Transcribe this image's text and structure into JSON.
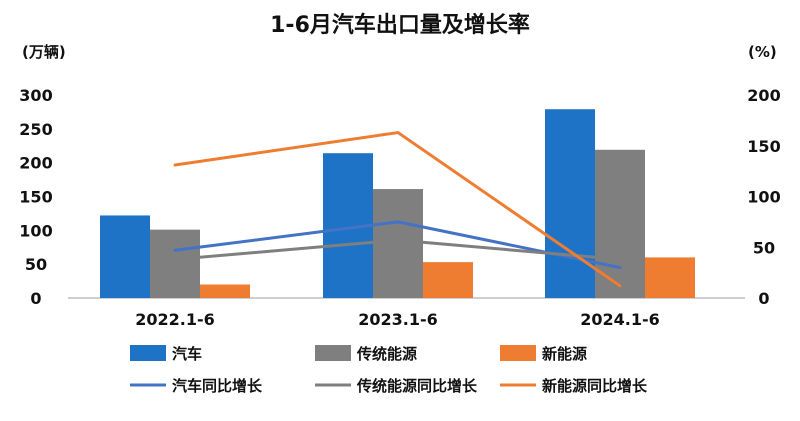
{
  "chart_data": {
    "type": "bar+line",
    "title": "1-6月汽车出口量及增长率",
    "ylabel_left": "(万辆)",
    "ylabel_right": "(%)",
    "categories": [
      "2022.1-6",
      "2023.1-6",
      "2024.1-6"
    ],
    "ylim_left": [
      0,
      300
    ],
    "ylim_right": [
      0,
      200
    ],
    "yticks_left": [
      "0",
      "50",
      "100",
      "150",
      "200",
      "250",
      "300"
    ],
    "yticks_right": [
      "0",
      "50",
      "100",
      "150",
      "200"
    ],
    "bar_series": [
      {
        "name": "汽车",
        "color": "#1f73c7",
        "values": [
          122,
          214,
          279
        ]
      },
      {
        "name": "传统能源",
        "color": "#7f7f7f",
        "values": [
          101,
          161,
          219
        ]
      },
      {
        "name": "新能源",
        "color": "#ee7d31",
        "values": [
          20,
          53,
          60
        ]
      }
    ],
    "line_series": [
      {
        "name": "汽车同比增长",
        "color": "#4472c4",
        "values": [
          47,
          75,
          30
        ]
      },
      {
        "name": "传统能源同比增长",
        "color": "#7f7f7f",
        "values": [
          38,
          57,
          38
        ]
      },
      {
        "name": "新能源同比增长",
        "color": "#ee7d31",
        "values": [
          131,
          163,
          12
        ]
      }
    ],
    "grid": false,
    "legend_position": "bottom"
  }
}
